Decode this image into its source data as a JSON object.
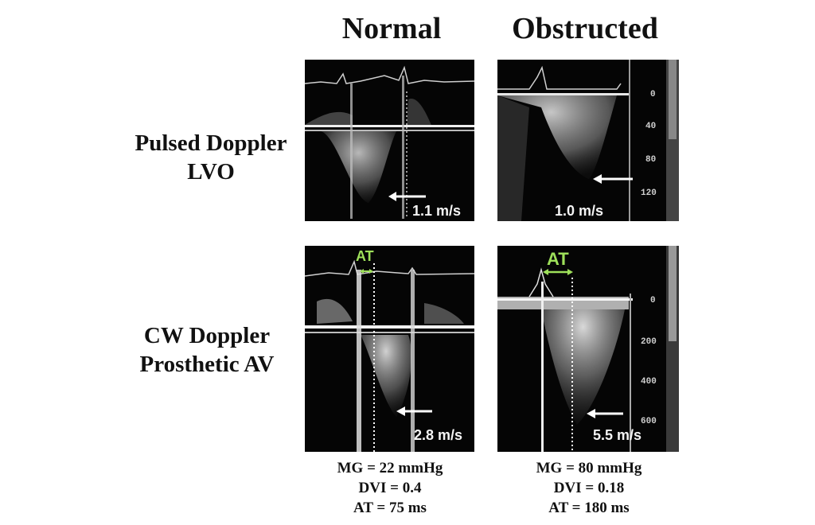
{
  "columns": {
    "normal": "Normal",
    "obstructed": "Obstructed"
  },
  "rows": {
    "pulsed": {
      "line1": "Pulsed Doppler",
      "line2": "LVO"
    },
    "cw": {
      "line1": "CW Doppler",
      "line2": "Prosthetic AV"
    }
  },
  "panels": {
    "pulsed_normal": {
      "velocity": "1.1 m/s"
    },
    "pulsed_obstructed": {
      "velocity": "1.0 m/s",
      "ticks": [
        "0",
        "40",
        "80",
        "120"
      ]
    },
    "cw_normal": {
      "velocity": "2.8 m/s",
      "at_label": "AT"
    },
    "cw_obstructed": {
      "velocity": "5.5 m/s",
      "at_label": "AT",
      "ticks": [
        "0",
        "200",
        "400",
        "600"
      ]
    }
  },
  "metrics": {
    "normal": {
      "mg": "MG = 22 mmHg",
      "dvi": "DVI = 0.4",
      "at": "AT = 75 ms"
    },
    "obstructed": {
      "mg": "MG = 80 mmHg",
      "dvi": "DVI = 0.18",
      "at": "AT = 180 ms"
    }
  },
  "colors": {
    "at_marker": "#9ee05a",
    "panel_bg": "#050505",
    "arrow": "#ffffff"
  }
}
